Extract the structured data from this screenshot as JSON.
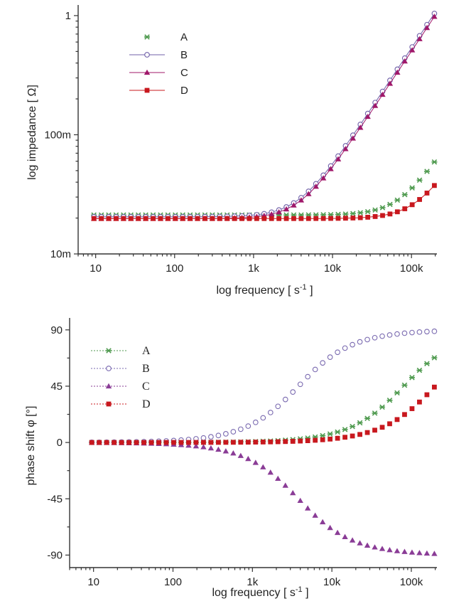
{
  "chart_data": [
    {
      "type": "line",
      "scale": "log-log",
      "xlabel_text": "log frequency [ s",
      "xlabel_sup": "-1",
      "xlabel_end": " ]",
      "ylabel": "log impedance [ Ω]",
      "xlim": [
        6,
        210000
      ],
      "ylim": [
        0.01,
        1.1
      ],
      "xticks": [
        10,
        100,
        1000,
        10000,
        100000
      ],
      "xtick_labels": [
        "10",
        "100",
        "1k",
        "10k",
        "100k"
      ],
      "yticks": [
        0.01,
        0.1,
        1
      ],
      "ytick_labels": [
        "10m",
        "100m",
        "1"
      ],
      "legend_position": "top-left",
      "series": [
        {
          "name": "A",
          "marker": "star",
          "color": "#4f9a4f",
          "line": false,
          "r": 0.0212,
          "l": 4.5e-08
        },
        {
          "name": "B",
          "marker": "open-circle",
          "color": "#7060a8",
          "line": true,
          "r": 0.0205,
          "l": 8.5e-07
        },
        {
          "name": "C",
          "marker": "triangle",
          "color": "#a0186a",
          "line": true,
          "r": 0.0198,
          "l": -8e-07
        },
        {
          "name": "D",
          "marker": "square",
          "color": "#c8181e",
          "line": true,
          "r": 0.0198,
          "l": 2.6e-08
        }
      ]
    },
    {
      "type": "scatter",
      "scale": "log-linear",
      "xlabel_text": "log frequency [ s",
      "xlabel_sup": "-1",
      "xlabel_end": " ]",
      "ylabel": "phase shift φ [°]",
      "xlim": [
        5,
        210000
      ],
      "ylim": [
        -100,
        95
      ],
      "xticks": [
        10,
        100,
        1000,
        10000,
        100000
      ],
      "xtick_labels": [
        "10",
        "100",
        "1k",
        "10k",
        "100k"
      ],
      "yticks": [
        90,
        45,
        0,
        -45,
        -90
      ],
      "ytick_labels": [
        "90",
        "45",
        "0",
        "-45",
        "-90"
      ],
      "legend_position": "top-left",
      "series": [
        {
          "name": "A",
          "marker": "star",
          "color": "#4f9a4f",
          "fc": 80000
        },
        {
          "name": "B",
          "marker": "open-circle",
          "color": "#7a6ab0",
          "fc": 3800
        },
        {
          "name": "C",
          "marker": "triangle",
          "color": "#8a3c96",
          "fc": -3800
        },
        {
          "name": "D",
          "marker": "square",
          "color": "#c8181e",
          "fc": 200000
        }
      ]
    }
  ]
}
